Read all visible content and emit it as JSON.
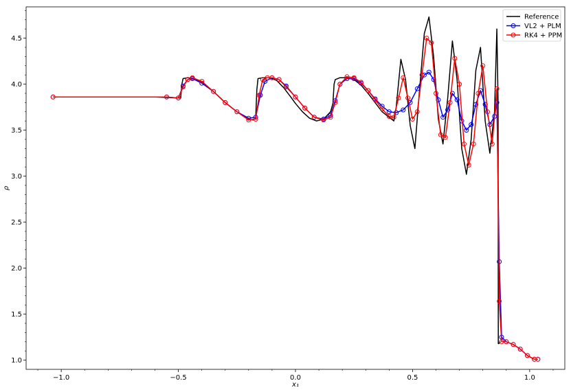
{
  "chart_data": {
    "type": "line",
    "title": "",
    "xlabel": "x₁",
    "ylabel": "ρ",
    "xlim": [
      -1.15,
      1.15
    ],
    "ylim": [
      0.9,
      4.84
    ],
    "xticks": [
      -1.0,
      -0.5,
      0.0,
      0.5,
      1.0
    ],
    "xtick_labels": [
      "−1.0",
      "−0.5",
      "0.0",
      "0.5",
      "1.0"
    ],
    "yticks": [
      1.0,
      1.5,
      2.0,
      2.5,
      3.0,
      3.5,
      4.0,
      4.5
    ],
    "ytick_labels": [
      "1.0",
      "1.5",
      "2.0",
      "2.5",
      "3.0",
      "3.5",
      "4.0",
      "4.5"
    ],
    "grid": false,
    "legend_position": "top-right",
    "series": [
      {
        "name": "Reference",
        "color": "#000000",
        "marker": "none",
        "x": [
          -1.03,
          -0.6,
          -0.5,
          -0.49,
          -0.485,
          -0.48,
          -0.46,
          -0.43,
          -0.4,
          -0.35,
          -0.3,
          -0.25,
          -0.2,
          -0.18,
          -0.17,
          -0.165,
          -0.16,
          -0.14,
          -0.11,
          -0.08,
          -0.05,
          -0.02,
          0.0,
          0.03,
          0.06,
          0.09,
          0.12,
          0.15,
          0.16,
          0.165,
          0.17,
          0.19,
          0.22,
          0.25,
          0.28,
          0.31,
          0.34,
          0.37,
          0.4,
          0.42,
          0.43,
          0.45,
          0.47,
          0.49,
          0.51,
          0.53,
          0.55,
          0.57,
          0.59,
          0.61,
          0.63,
          0.65,
          0.67,
          0.69,
          0.71,
          0.73,
          0.75,
          0.77,
          0.79,
          0.81,
          0.83,
          0.85,
          0.86,
          0.865,
          0.866,
          0.868,
          0.875
        ],
        "y": [
          3.86,
          3.86,
          3.85,
          3.85,
          4.0,
          4.06,
          4.07,
          4.06,
          4.02,
          3.92,
          3.8,
          3.7,
          3.62,
          3.61,
          3.63,
          3.94,
          4.06,
          4.07,
          4.07,
          4.04,
          3.96,
          3.86,
          3.79,
          3.7,
          3.63,
          3.6,
          3.62,
          3.7,
          3.79,
          4.0,
          4.05,
          4.07,
          4.07,
          4.05,
          3.99,
          3.9,
          3.8,
          3.7,
          3.64,
          3.6,
          3.75,
          4.27,
          4.05,
          3.55,
          3.3,
          3.95,
          4.55,
          4.73,
          4.3,
          3.62,
          3.35,
          3.85,
          4.47,
          4.05,
          3.3,
          3.02,
          3.4,
          4.15,
          4.4,
          3.6,
          3.25,
          3.7,
          4.6,
          3.8,
          1.18,
          1.18,
          1.2
        ]
      },
      {
        "name": "VL2 + PLM",
        "color": "#0000ff",
        "marker": "circle",
        "x": [
          -1.035,
          -0.55,
          -0.5,
          -0.48,
          -0.46,
          -0.44,
          -0.4,
          -0.35,
          -0.3,
          -0.25,
          -0.2,
          -0.17,
          -0.15,
          -0.13,
          -0.1,
          -0.07,
          -0.04,
          0.0,
          0.04,
          0.08,
          0.12,
          0.15,
          0.17,
          0.19,
          0.22,
          0.25,
          0.28,
          0.31,
          0.34,
          0.37,
          0.4,
          0.43,
          0.46,
          0.49,
          0.52,
          0.55,
          0.57,
          0.59,
          0.61,
          0.63,
          0.65,
          0.67,
          0.69,
          0.71,
          0.73,
          0.75,
          0.77,
          0.79,
          0.81,
          0.83,
          0.85,
          0.86,
          0.87,
          0.88,
          0.9,
          0.93,
          0.96,
          0.99,
          1.02,
          1.035
        ],
        "y": [
          3.86,
          3.86,
          3.85,
          3.98,
          4.05,
          4.06,
          4.01,
          3.92,
          3.8,
          3.7,
          3.63,
          3.64,
          3.88,
          4.03,
          4.07,
          4.05,
          3.98,
          3.86,
          3.74,
          3.64,
          3.62,
          3.66,
          3.82,
          4.0,
          4.06,
          4.06,
          4.01,
          3.93,
          3.84,
          3.76,
          3.7,
          3.69,
          3.72,
          3.8,
          3.95,
          4.1,
          4.13,
          4.05,
          3.83,
          3.64,
          3.72,
          3.9,
          3.83,
          3.6,
          3.5,
          3.56,
          3.78,
          3.93,
          3.78,
          3.56,
          3.65,
          3.8,
          2.07,
          1.25,
          1.2,
          1.17,
          1.12,
          1.05,
          1.01,
          1.01
        ]
      },
      {
        "name": "RK4 + PPM",
        "color": "#ff0000",
        "marker": "circle",
        "x": [
          -1.035,
          -0.55,
          -0.5,
          -0.48,
          -0.46,
          -0.44,
          -0.4,
          -0.35,
          -0.3,
          -0.25,
          -0.2,
          -0.17,
          -0.155,
          -0.14,
          -0.12,
          -0.1,
          -0.07,
          -0.04,
          0.0,
          0.04,
          0.08,
          0.12,
          0.15,
          0.17,
          0.19,
          0.22,
          0.25,
          0.28,
          0.31,
          0.34,
          0.37,
          0.4,
          0.42,
          0.44,
          0.46,
          0.48,
          0.5,
          0.52,
          0.54,
          0.56,
          0.58,
          0.6,
          0.62,
          0.64,
          0.66,
          0.68,
          0.7,
          0.72,
          0.74,
          0.76,
          0.78,
          0.8,
          0.82,
          0.84,
          0.86,
          0.87,
          0.88,
          0.9,
          0.93,
          0.96,
          0.99,
          1.02,
          1.035
        ],
        "y": [
          3.86,
          3.86,
          3.85,
          3.97,
          4.05,
          4.07,
          4.03,
          3.92,
          3.8,
          3.7,
          3.61,
          3.62,
          3.88,
          4.05,
          4.07,
          4.07,
          4.05,
          3.97,
          3.86,
          3.74,
          3.64,
          3.61,
          3.64,
          3.8,
          4.0,
          4.08,
          4.07,
          4.02,
          3.93,
          3.83,
          3.73,
          3.65,
          3.64,
          3.85,
          4.07,
          3.85,
          3.62,
          3.7,
          4.1,
          4.5,
          4.45,
          3.9,
          3.45,
          3.42,
          3.8,
          4.28,
          4.0,
          3.35,
          3.12,
          3.35,
          3.9,
          4.2,
          3.7,
          3.35,
          3.95,
          1.64,
          1.2,
          1.2,
          1.17,
          1.12,
          1.05,
          1.01,
          1.01
        ]
      }
    ]
  }
}
